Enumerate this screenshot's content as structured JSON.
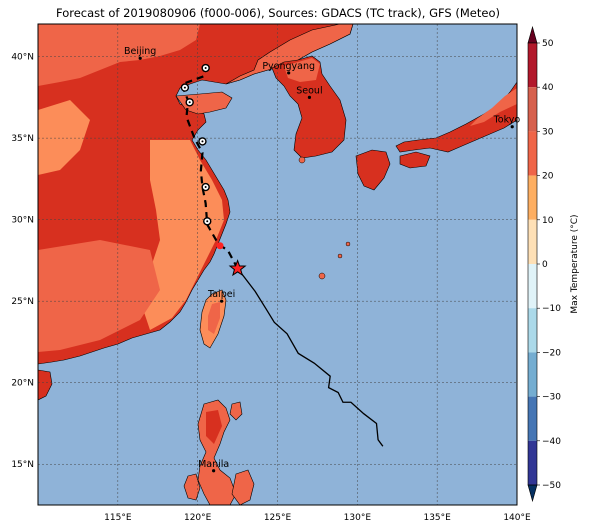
{
  "title": "Forecast of 2019080906 (f000-006), Sources: GDACS (TC track), GFS (Meteo)",
  "map": {
    "lon_range": [
      110,
      140
    ],
    "lat_range": [
      12.5,
      42
    ],
    "lon_ticks": [
      "115°E",
      "120°E",
      "125°E",
      "130°E",
      "135°E",
      "140°E"
    ],
    "lat_ticks": [
      "40°N",
      "35°N",
      "30°N",
      "25°N",
      "20°N",
      "15°N"
    ],
    "colors": {
      "ocean": "#8fb3d8",
      "land_hot": "#d7301f",
      "land_warm": "#ef6548",
      "land_mild": "#fc8d59"
    }
  },
  "cities": [
    {
      "name": "Beijing",
      "lon": 116.4,
      "lat": 39.9
    },
    {
      "name": "Pyongyang",
      "lon": 125.7,
      "lat": 39.0
    },
    {
      "name": "Seoul",
      "lon": 127.0,
      "lat": 37.5
    },
    {
      "name": "Tokyo",
      "lon": 139.7,
      "lat": 35.7
    },
    {
      "name": "Taipei",
      "lon": 121.5,
      "lat": 25.0
    },
    {
      "name": "Manila",
      "lon": 121.0,
      "lat": 14.6
    }
  ],
  "storm": {
    "current": {
      "lon": 122.5,
      "lat": 27.0
    },
    "past_track": [
      [
        131.6,
        16.1
      ],
      [
        131.3,
        16.5
      ],
      [
        131.2,
        17.5
      ],
      [
        130.4,
        18.1
      ],
      [
        129.6,
        18.8
      ],
      [
        129.1,
        18.8
      ],
      [
        128.8,
        19.4
      ],
      [
        128.2,
        19.7
      ],
      [
        128.3,
        20.4
      ],
      [
        127.3,
        21.2
      ],
      [
        126.3,
        21.8
      ],
      [
        125.6,
        23.0
      ],
      [
        124.8,
        23.7
      ],
      [
        124.3,
        24.5
      ],
      [
        123.6,
        25.6
      ],
      [
        122.9,
        26.5
      ],
      [
        122.5,
        27.0
      ]
    ],
    "forecast_track": [
      [
        122.5,
        27.0
      ],
      [
        121.9,
        28.1
      ],
      [
        121.3,
        28.5
      ],
      [
        120.6,
        29.7
      ],
      [
        120.5,
        31.0
      ],
      [
        120.3,
        32.0
      ],
      [
        120.2,
        33.0
      ],
      [
        120.3,
        34.1
      ],
      [
        119.8,
        35.0
      ],
      [
        119.3,
        36.3
      ],
      [
        119.4,
        37.3
      ],
      [
        119.0,
        38.3
      ],
      [
        120.4,
        38.8
      ],
      [
        120.5,
        39.4
      ]
    ],
    "forecast_points": [
      [
        120.6,
        29.9
      ],
      [
        120.5,
        32.0
      ],
      [
        120.3,
        34.8
      ],
      [
        119.5,
        37.2
      ],
      [
        119.2,
        38.1
      ],
      [
        120.5,
        39.3
      ]
    ],
    "track_color": "#000000",
    "current_marker_color": "#ff2222"
  },
  "colorbar": {
    "label": "Max Temperature (°C)",
    "ticks": [
      "50",
      "40",
      "30",
      "20",
      "10",
      "0",
      "−10",
      "−20",
      "−30",
      "−40",
      "−50"
    ],
    "colors": [
      "#67001f",
      "#b2182b",
      "#d6604d",
      "#f4a582",
      "#fddbc7",
      "#f7f7f7",
      "#d1e5f0",
      "#92c5de",
      "#4393c3",
      "#2166ac",
      "#053061"
    ]
  }
}
